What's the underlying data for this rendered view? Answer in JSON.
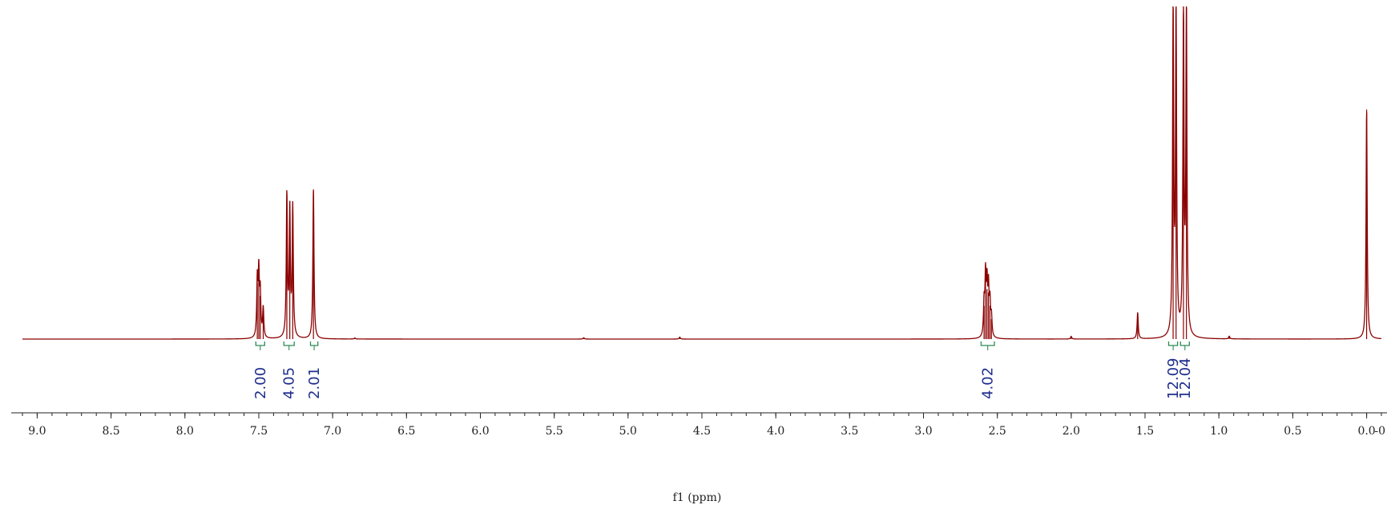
{
  "chart_data": {
    "type": "line",
    "title": "",
    "xlabel": "f1 (ppm)",
    "ylabel": "",
    "xlim": [
      9.1,
      -0.1
    ],
    "ylim": [
      0,
      1.0
    ],
    "x_axis_reversed": true,
    "grid": false,
    "legend": "none",
    "line_color": "#8b0000",
    "integral_color": "#2e8b57",
    "integral_label_color": "#1f2f8c",
    "x_ticks": [
      {
        "value": 9.0,
        "label": "9.0"
      },
      {
        "value": 8.5,
        "label": "8.5"
      },
      {
        "value": 8.0,
        "label": "8.0"
      },
      {
        "value": 7.5,
        "label": "7.5"
      },
      {
        "value": 7.0,
        "label": "7.0"
      },
      {
        "value": 6.5,
        "label": "6.5"
      },
      {
        "value": 6.0,
        "label": "6.0"
      },
      {
        "value": 5.5,
        "label": "5.5"
      },
      {
        "value": 5.0,
        "label": "5.0"
      },
      {
        "value": 4.5,
        "label": "4.5"
      },
      {
        "value": 4.0,
        "label": "4.0"
      },
      {
        "value": 3.5,
        "label": "3.5"
      },
      {
        "value": 3.0,
        "label": "3.0"
      },
      {
        "value": 2.5,
        "label": "2.5"
      },
      {
        "value": 2.0,
        "label": "2.0"
      },
      {
        "value": 1.5,
        "label": "1.5"
      },
      {
        "value": 1.0,
        "label": "1.0"
      },
      {
        "value": 0.5,
        "label": "0.5"
      },
      {
        "value": 0.0,
        "label": "0.0"
      },
      {
        "value": -0.5,
        "label": "-0"
      }
    ],
    "peaks": [
      {
        "ppm": 7.51,
        "height": 0.17
      },
      {
        "ppm": 7.5,
        "height": 0.19
      },
      {
        "ppm": 7.49,
        "height": 0.13
      },
      {
        "ppm": 7.47,
        "height": 0.09
      },
      {
        "ppm": 7.31,
        "height": 0.43
      },
      {
        "ppm": 7.29,
        "height": 0.38
      },
      {
        "ppm": 7.27,
        "height": 0.39
      },
      {
        "ppm": 7.13,
        "height": 0.45
      },
      {
        "ppm": 6.85,
        "height": 0.003
      },
      {
        "ppm": 5.3,
        "height": 0.004
      },
      {
        "ppm": 4.65,
        "height": 0.006
      },
      {
        "ppm": 2.59,
        "height": 0.1
      },
      {
        "ppm": 2.58,
        "height": 0.18
      },
      {
        "ppm": 2.57,
        "height": 0.15
      },
      {
        "ppm": 2.56,
        "height": 0.14
      },
      {
        "ppm": 2.55,
        "height": 0.1
      },
      {
        "ppm": 2.54,
        "height": 0.06
      },
      {
        "ppm": 2.0,
        "height": 0.008
      },
      {
        "ppm": 1.55,
        "height": 0.08
      },
      {
        "ppm": 1.31,
        "height": 0.98
      },
      {
        "ppm": 1.29,
        "height": 0.97
      },
      {
        "ppm": 1.24,
        "height": 0.98
      },
      {
        "ppm": 1.22,
        "height": 0.99
      },
      {
        "ppm": 0.93,
        "height": 0.008
      },
      {
        "ppm": 0.0,
        "height": 0.69
      }
    ],
    "integrals": [
      {
        "from": 7.52,
        "to": 7.46,
        "value": "2.00"
      },
      {
        "from": 7.33,
        "to": 7.26,
        "value": "4.05"
      },
      {
        "from": 7.15,
        "to": 7.1,
        "value": "2.01"
      },
      {
        "from": 2.61,
        "to": 2.52,
        "value": "4.02"
      },
      {
        "from": 1.34,
        "to": 1.28,
        "value": "12.09"
      },
      {
        "from": 1.26,
        "to": 1.2,
        "value": "12.04"
      }
    ]
  }
}
